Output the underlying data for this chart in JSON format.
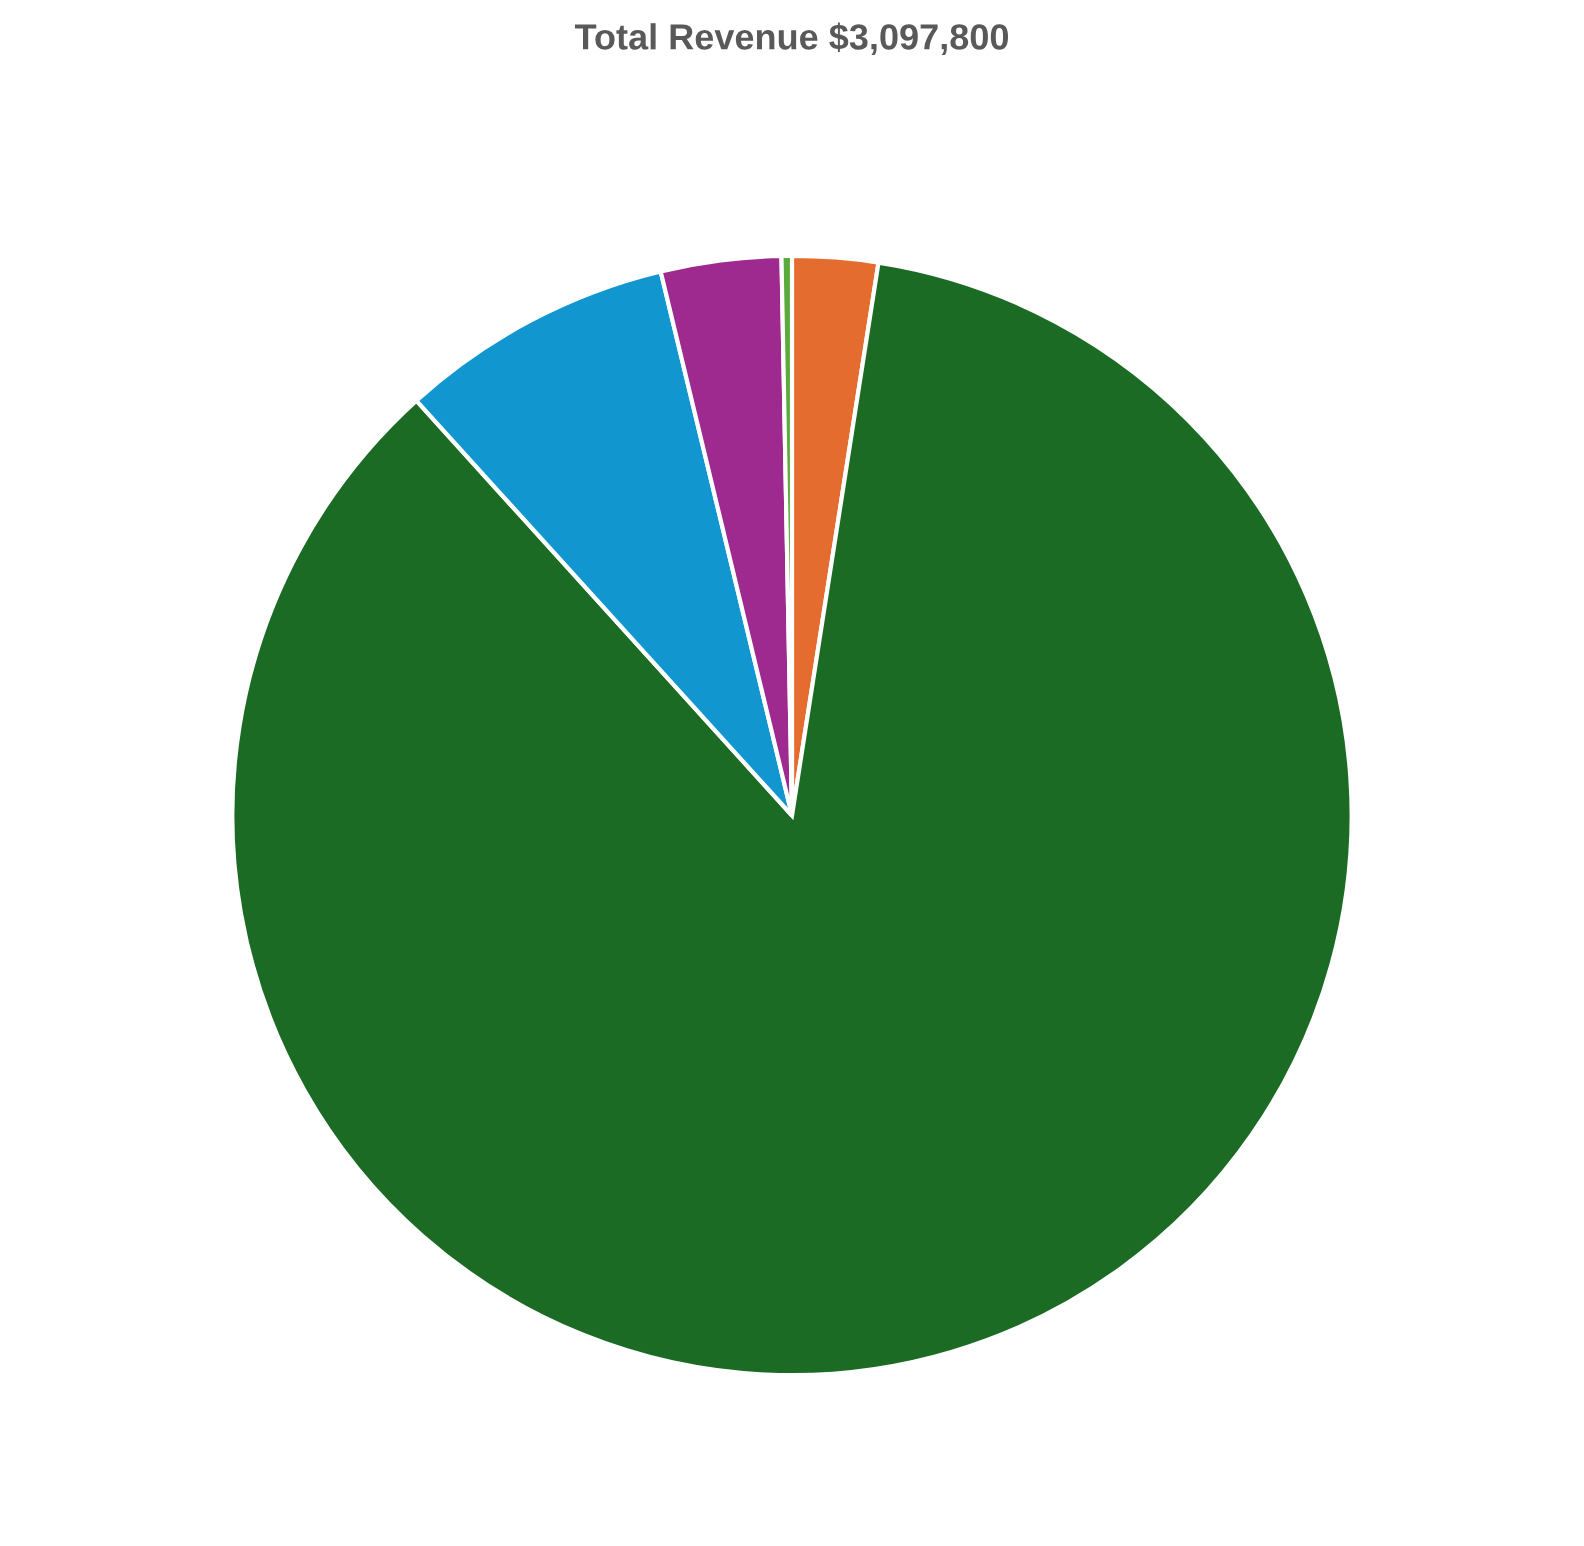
{
  "chart_data": {
    "type": "pie",
    "title": "Total Revenue $3,097,800",
    "categories": [
      null,
      null,
      null,
      null,
      null
    ],
    "values": [
      2.47,
      85.82,
      7.94,
      3.47,
      0.3
    ],
    "colors": [
      "#e46c2f",
      "#1b6b25",
      "#1196d0",
      "#9e2a90",
      "#5aab3c"
    ],
    "legend": false
  }
}
